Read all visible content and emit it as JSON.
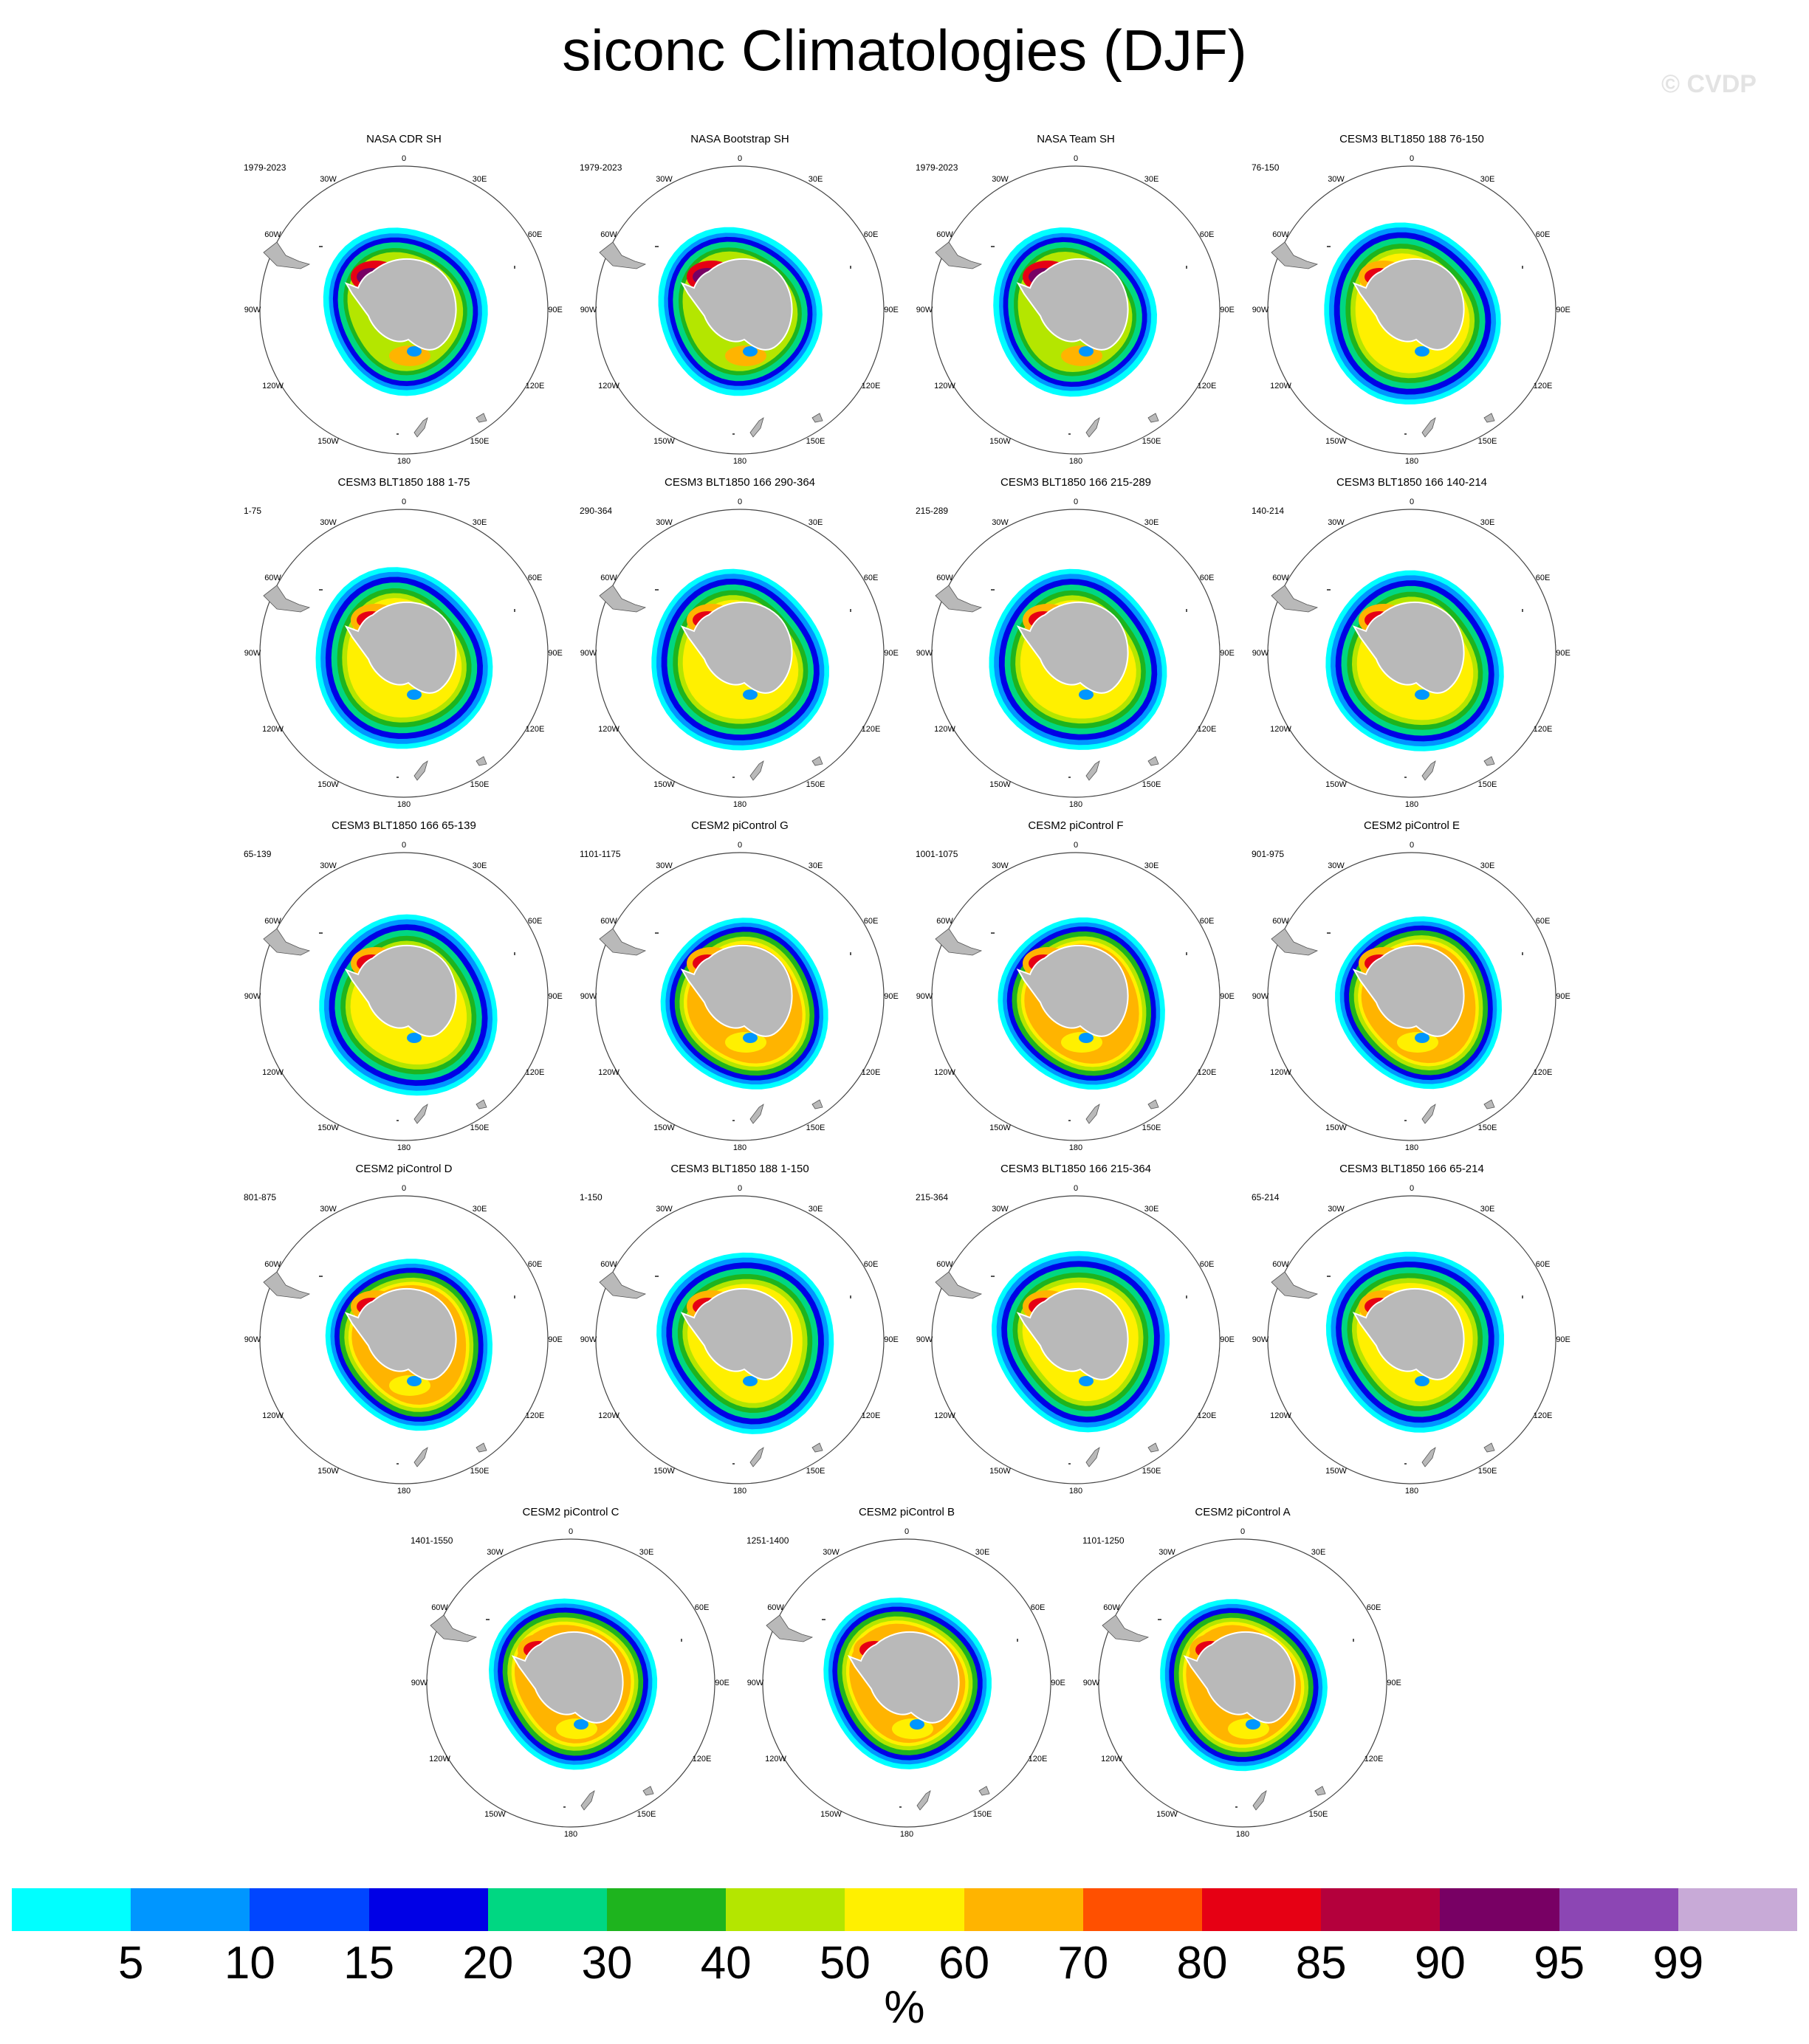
{
  "title": "siconc Climatologies (DJF)",
  "watermark": "© CVDP",
  "degree_labels": [
    "0",
    "30E",
    "60E",
    "90E",
    "120E",
    "150E",
    "180",
    "150W",
    "120W",
    "90W",
    "60W",
    "30W"
  ],
  "panels": [
    {
      "title": "NASA CDR SH",
      "years": "1979-2023",
      "style": "obs"
    },
    {
      "title": "NASA Bootstrap SH",
      "years": "1979-2023",
      "style": "obs"
    },
    {
      "title": "NASA Team SH",
      "years": "1979-2023",
      "style": "obs"
    },
    {
      "title": "CESM3 BLT1850 188 76-150",
      "years": "76-150",
      "style": "cesm3"
    },
    {
      "title": "CESM3 BLT1850 188 1-75",
      "years": "1-75",
      "style": "cesm3"
    },
    {
      "title": "CESM3 BLT1850 166 290-364",
      "years": "290-364",
      "style": "cesm3"
    },
    {
      "title": "CESM3 BLT1850 166 215-289",
      "years": "215-289",
      "style": "cesm3"
    },
    {
      "title": "CESM3 BLT1850 166 140-214",
      "years": "140-214",
      "style": "cesm3"
    },
    {
      "title": "CESM3 BLT1850 166 65-139",
      "years": "65-139",
      "style": "cesm3"
    },
    {
      "title": "CESM2 piControl G",
      "years": "1101-1175",
      "style": "cesm2"
    },
    {
      "title": "CESM2 piControl F",
      "years": "1001-1075",
      "style": "cesm2"
    },
    {
      "title": "CESM2 piControl E",
      "years": "901-975",
      "style": "cesm2"
    },
    {
      "title": "CESM2 piControl D",
      "years": "801-875",
      "style": "cesm2"
    },
    {
      "title": "CESM3 BLT1850 188 1-150",
      "years": "1-150",
      "style": "cesm3"
    },
    {
      "title": "CESM3 BLT1850 166 215-364",
      "years": "215-364",
      "style": "cesm3"
    },
    {
      "title": "CESM3 BLT1850 166 65-214",
      "years": "65-214",
      "style": "cesm3"
    },
    {
      "title": "CESM2 piControl C",
      "years": "1401-1550",
      "style": "cesm2"
    },
    {
      "title": "CESM2 piControl B",
      "years": "1251-1400",
      "style": "cesm2"
    },
    {
      "title": "CESM2 piControl A",
      "years": "1101-1250",
      "style": "cesm2"
    }
  ],
  "colorbar": {
    "unit": "%",
    "tick_labels": [
      "5",
      "10",
      "15",
      "20",
      "30",
      "40",
      "50",
      "60",
      "70",
      "80",
      "85",
      "90",
      "95",
      "99"
    ],
    "colors": [
      "#00ffff",
      "#0096ff",
      "#0046ff",
      "#0000e6",
      "#00d782",
      "#1eb41e",
      "#b4e600",
      "#fff000",
      "#ffb400",
      "#ff5000",
      "#e60014",
      "#b4003c",
      "#780064",
      "#8c46b4",
      "#c8aad7"
    ]
  }
}
